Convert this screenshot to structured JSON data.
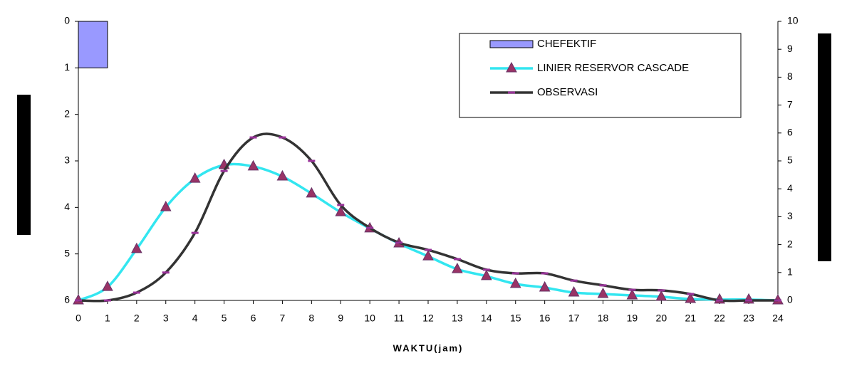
{
  "chart_data": {
    "type": "combo",
    "x": [
      0,
      1,
      2,
      3,
      4,
      5,
      6,
      7,
      8,
      9,
      10,
      11,
      12,
      13,
      14,
      15,
      16,
      17,
      18,
      19,
      20,
      21,
      22,
      23,
      24
    ],
    "xlim": [
      0,
      24
    ],
    "xticks": [
      0,
      1,
      2,
      3,
      4,
      5,
      6,
      7,
      8,
      9,
      10,
      11,
      12,
      13,
      14,
      15,
      16,
      17,
      18,
      19,
      20,
      21,
      22,
      23,
      24
    ],
    "xlabel": "WAKTU(jam)",
    "ylim": [
      6,
      0
    ],
    "yticks": [
      0,
      1,
      2,
      3,
      4,
      5,
      6
    ],
    "y2lim": [
      0,
      10
    ],
    "y2ticks": [
      0,
      1,
      2,
      3,
      4,
      5,
      6,
      7,
      8,
      9,
      10
    ],
    "grid": false,
    "series": [
      {
        "name": "CHEFEKTIF",
        "type": "bar",
        "color": "#9999ff",
        "x": [
          0
        ],
        "values": [
          1
        ]
      },
      {
        "name": "LINIER RESERVOR CASCADE",
        "type": "line",
        "axis": "y2",
        "color": "#33e6f0",
        "marker": "triangle",
        "marker_color": "#993366",
        "values": [
          0,
          0.48,
          1.84,
          3.34,
          4.36,
          4.85,
          4.8,
          4.44,
          3.83,
          3.16,
          2.58,
          2.04,
          1.58,
          1.12,
          0.87,
          0.59,
          0.46,
          0.28,
          0.23,
          0.18,
          0.13,
          0.05,
          0.03,
          0.03,
          0
        ]
      },
      {
        "name": "OBSERVASI",
        "type": "line",
        "axis": "y2",
        "color": "#333333",
        "marker": "dash",
        "marker_color": "#993399",
        "values": [
          0,
          0,
          0.28,
          1.0,
          2.42,
          4.64,
          5.84,
          5.84,
          5.0,
          3.42,
          2.6,
          2.07,
          1.81,
          1.48,
          1.1,
          0.97,
          0.97,
          0.71,
          0.54,
          0.38,
          0.36,
          0.23,
          0,
          0,
          0
        ]
      }
    ]
  }
}
